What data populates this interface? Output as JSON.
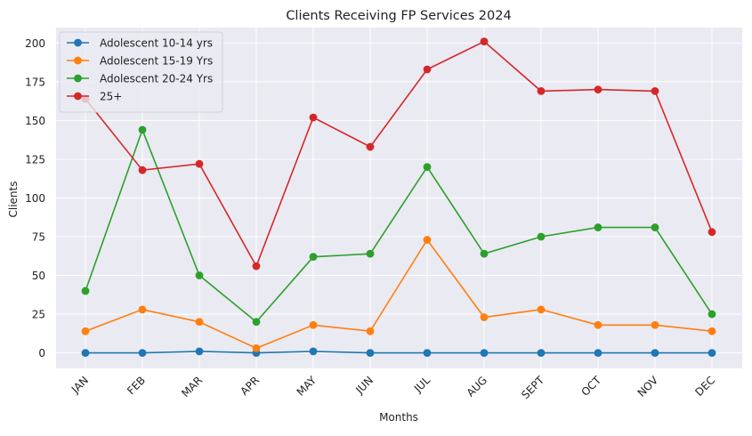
{
  "chart_data": {
    "type": "line",
    "title": "Clients Receiving FP Services 2024",
    "xlabel": "Months",
    "ylabel": "Clients",
    "categories": [
      "JAN",
      "FEB",
      "MAR",
      "APR",
      "MAY",
      "JUN",
      "JUL",
      "AUG",
      "SEPT",
      "OCT",
      "NOV",
      "DEC"
    ],
    "ylim": [
      -10,
      210
    ],
    "yticks": [
      0,
      25,
      50,
      75,
      100,
      125,
      150,
      175,
      200
    ],
    "grid": true,
    "legend_position": "top-left",
    "background_color": "#eaeaf2",
    "series": [
      {
        "name": "Adolescent 10-14 yrs",
        "color": "#1f77b4",
        "values": [
          0,
          0,
          1,
          0,
          1,
          0,
          0,
          0,
          0,
          0,
          0,
          0
        ]
      },
      {
        "name": "Adolescent 15-19 Yrs",
        "color": "#ff7f0e",
        "values": [
          14,
          28,
          20,
          3,
          18,
          14,
          73,
          23,
          28,
          18,
          18,
          14
        ]
      },
      {
        "name": "Adolescent 20-24 Yrs",
        "color": "#2ca02c",
        "values": [
          40,
          144,
          50,
          20,
          62,
          64,
          120,
          64,
          75,
          81,
          81,
          25
        ]
      },
      {
        "name": "25+",
        "color": "#d62728",
        "values": [
          164,
          118,
          122,
          56,
          152,
          133,
          183,
          201,
          169,
          170,
          169,
          78
        ]
      }
    ]
  }
}
